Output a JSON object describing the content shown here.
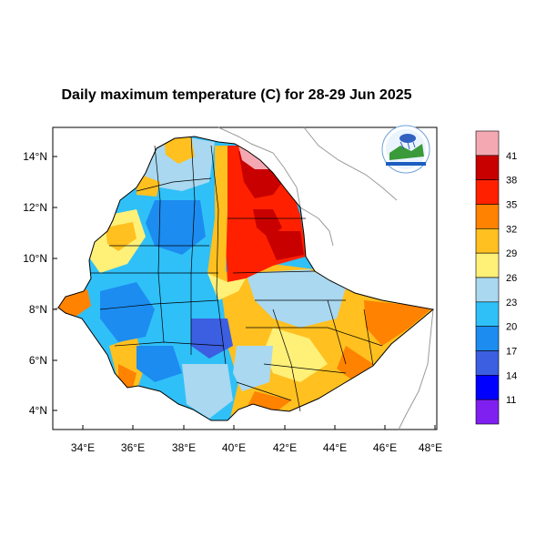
{
  "map": {
    "title": "Daily maximum temperature (C) for 28-29 Jun 2025",
    "lat_ticks": [
      "14°N",
      "12°N",
      "10°N",
      "8°N",
      "6°N",
      "4°N"
    ],
    "lon_ticks": [
      "34°E",
      "36°E",
      "38°E",
      "40°E",
      "42°E",
      "44°E",
      "46°E",
      "48°E"
    ]
  },
  "colorbar": {
    "labels": [
      "41",
      "38",
      "35",
      "32",
      "29",
      "26",
      "23",
      "20",
      "17",
      "14",
      "11"
    ],
    "colors": [
      "#f4a9b2",
      "#c80000",
      "#ff2000",
      "#ff8200",
      "#ffc020",
      "#fff078",
      "#a9d8f0",
      "#2fc0f8",
      "#1c8cf0",
      "#3c5ee0",
      "#0000ff",
      "#8020f0"
    ]
  },
  "logo": {
    "icon": "ethiopian-meteorology-institute-logo"
  }
}
